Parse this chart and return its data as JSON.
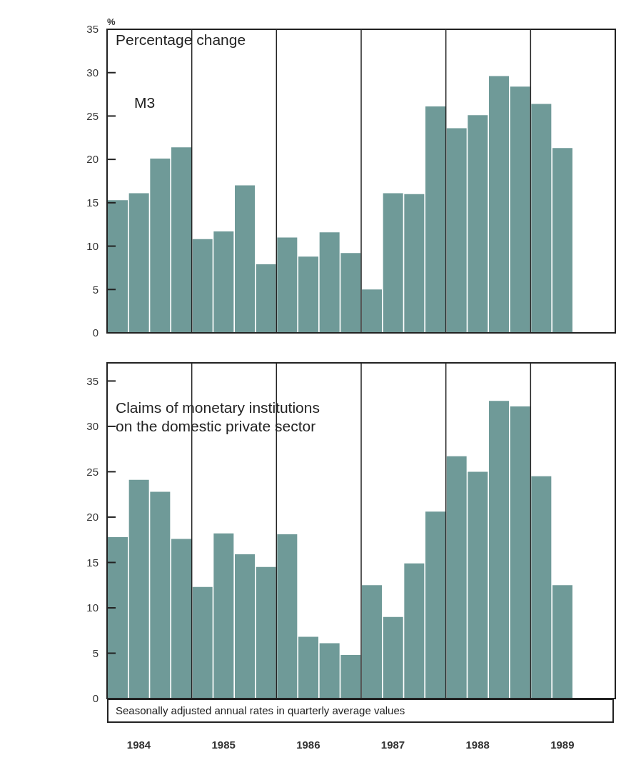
{
  "chart_data": [
    {
      "type": "bar",
      "title": "Percentage change",
      "subtitle": "M3",
      "ylabel": "%",
      "categories": [
        null,
        "1984",
        null,
        null,
        null,
        "1985",
        null,
        null,
        null,
        "1986",
        null,
        null,
        null,
        "1987",
        null,
        null,
        null,
        "1988",
        null,
        null,
        null,
        "1989"
      ],
      "values": [
        15.3,
        16.1,
        20.1,
        21.4,
        10.8,
        11.7,
        17.0,
        7.9,
        11.0,
        8.8,
        11.6,
        9.2,
        5.0,
        16.1,
        16.0,
        26.1,
        23.6,
        25.1,
        29.6,
        28.4,
        26.4,
        21.3
      ],
      "color": "#6f9a98",
      "ylim": [
        0,
        35
      ],
      "yticks": [
        0,
        5,
        10,
        15,
        20,
        25,
        30,
        35
      ],
      "grid": "x",
      "tick_labels": "y"
    },
    {
      "type": "bar",
      "title": "Claims of monetary institutions\non the domestic private sector",
      "categories": [
        null,
        "1984",
        null,
        null,
        null,
        "1985",
        null,
        null,
        null,
        "1986",
        null,
        null,
        null,
        "1987",
        null,
        null,
        null,
        "1988",
        null,
        null,
        null,
        "1989"
      ],
      "values": [
        17.8,
        24.1,
        22.8,
        17.6,
        12.3,
        18.2,
        15.9,
        14.5,
        18.1,
        6.8,
        6.1,
        4.8,
        12.5,
        9.0,
        14.9,
        20.6,
        26.7,
        25.0,
        32.8,
        32.2,
        24.5,
        12.5
      ],
      "color": "#6f9a98",
      "ylim": [
        0,
        37
      ],
      "yticks": [
        0,
        5,
        10,
        15,
        20,
        25,
        30,
        35
      ],
      "grid": "x",
      "annotations": [
        "Seasonally adjusted annual rates in quarterly average values"
      ]
    }
  ]
}
